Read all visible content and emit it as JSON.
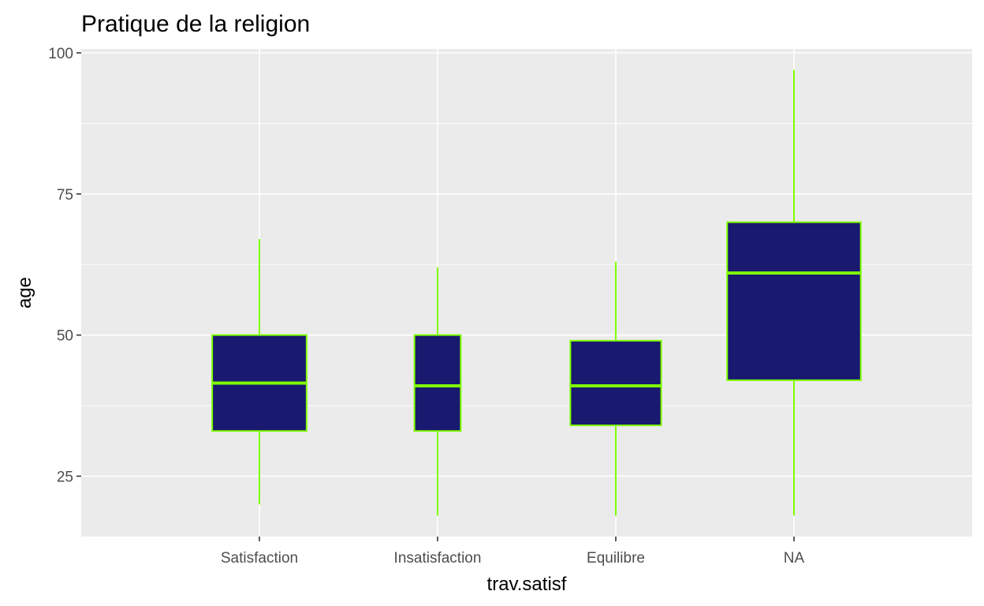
{
  "chart_data": {
    "type": "boxplot",
    "title": "Pratique de la religion",
    "xlabel": "trav.satisf",
    "ylabel": "age",
    "categories": [
      "Satisfaction",
      "Insatisfaction",
      "Equilibre",
      "NA"
    ],
    "boxes": [
      {
        "category": "Satisfaction",
        "whisker_low": 20,
        "q1": 33,
        "median": 41.5,
        "q3": 50,
        "whisker_high": 67,
        "relative_width": 0.53
      },
      {
        "category": "Insatisfaction",
        "whisker_low": 18,
        "q1": 33,
        "median": 41,
        "q3": 50,
        "whisker_high": 62,
        "relative_width": 0.26
      },
      {
        "category": "Equilibre",
        "whisker_low": 18,
        "q1": 34,
        "median": 41,
        "q3": 49,
        "whisker_high": 63,
        "relative_width": 0.51
      },
      {
        "category": "NA",
        "whisker_low": 18,
        "q1": 42,
        "median": 61,
        "q3": 70,
        "whisker_high": 97,
        "relative_width": 0.75
      }
    ],
    "yticks": [
      25,
      50,
      75,
      100
    ],
    "ylim": [
      14.3,
      100.7
    ],
    "grid": true,
    "colors": {
      "box_fill": "#191970",
      "box_outline": "#7fff00",
      "panel_background": "#ebebeb",
      "grid": "#ffffff"
    }
  }
}
